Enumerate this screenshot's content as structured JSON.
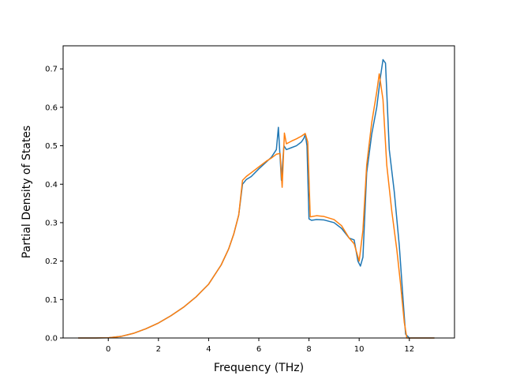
{
  "chart_data": {
    "type": "line",
    "xlabel": "Frequency (THz)",
    "ylabel": "Partial Density of States",
    "xlim": [
      -1.8,
      13.8
    ],
    "ylim": [
      0.0,
      0.76
    ],
    "xticks": [
      0,
      2,
      4,
      6,
      8,
      10,
      12
    ],
    "yticks": [
      0.0,
      0.1,
      0.2,
      0.3,
      0.4,
      0.5,
      0.6,
      0.7
    ],
    "ytick_labels": [
      "0.0",
      "0.1",
      "0.2",
      "0.3",
      "0.4",
      "0.5",
      "0.6",
      "0.7"
    ],
    "grid": false,
    "legend": "none",
    "colors": [
      "#1f77b4",
      "#ff7f0e"
    ],
    "series": [
      {
        "x": [
          -1.2,
          -0.5,
          0.0,
          0.5,
          1.0,
          1.5,
          2.0,
          2.5,
          3.0,
          3.5,
          4.0,
          4.5,
          4.8,
          5.0,
          5.2,
          5.35,
          5.5,
          5.7,
          6.0,
          6.3,
          6.5,
          6.7,
          6.78,
          6.9,
          7.0,
          7.1,
          7.3,
          7.5,
          7.7,
          7.8,
          7.85,
          7.92,
          8.0,
          8.1,
          8.3,
          8.6,
          9.0,
          9.3,
          9.6,
          9.8,
          9.95,
          10.05,
          10.15,
          10.3,
          10.5,
          10.7,
          10.85,
          10.95,
          11.05,
          11.2,
          11.4,
          11.6,
          11.75,
          11.85,
          12.0,
          13.0
        ],
        "y": [
          0.0,
          0.0,
          0.0005,
          0.004,
          0.012,
          0.024,
          0.039,
          0.058,
          0.08,
          0.107,
          0.14,
          0.19,
          0.232,
          0.27,
          0.32,
          0.4,
          0.412,
          0.42,
          0.44,
          0.458,
          0.47,
          0.49,
          0.548,
          0.41,
          0.5,
          0.49,
          0.495,
          0.5,
          0.51,
          0.52,
          0.53,
          0.5,
          0.31,
          0.306,
          0.308,
          0.307,
          0.3,
          0.285,
          0.26,
          0.255,
          0.2,
          0.187,
          0.21,
          0.43,
          0.53,
          0.6,
          0.68,
          0.724,
          0.715,
          0.49,
          0.38,
          0.24,
          0.1,
          0.01,
          0.0,
          0.0
        ]
      },
      {
        "x": [
          -1.2,
          -0.5,
          0.0,
          0.5,
          1.0,
          1.5,
          2.0,
          2.5,
          3.0,
          3.5,
          4.0,
          4.5,
          4.8,
          5.0,
          5.2,
          5.35,
          5.5,
          5.7,
          6.0,
          6.3,
          6.5,
          6.7,
          6.85,
          6.93,
          7.02,
          7.1,
          7.3,
          7.5,
          7.7,
          7.85,
          7.95,
          8.05,
          8.3,
          8.6,
          9.0,
          9.3,
          9.6,
          9.8,
          10.0,
          10.15,
          10.3,
          10.5,
          10.7,
          10.8,
          10.95,
          11.1,
          11.3,
          11.5,
          11.65,
          11.8,
          11.9,
          12.0,
          13.0
        ],
        "y": [
          0.0,
          0.0,
          0.0005,
          0.004,
          0.012,
          0.024,
          0.039,
          0.058,
          0.08,
          0.107,
          0.14,
          0.19,
          0.232,
          0.27,
          0.32,
          0.41,
          0.42,
          0.43,
          0.445,
          0.46,
          0.468,
          0.478,
          0.48,
          0.392,
          0.533,
          0.505,
          0.512,
          0.518,
          0.525,
          0.532,
          0.51,
          0.315,
          0.318,
          0.316,
          0.308,
          0.292,
          0.26,
          0.245,
          0.2,
          0.28,
          0.45,
          0.56,
          0.64,
          0.687,
          0.62,
          0.45,
          0.33,
          0.23,
          0.14,
          0.04,
          0.0,
          0.0,
          0.0
        ]
      }
    ]
  }
}
